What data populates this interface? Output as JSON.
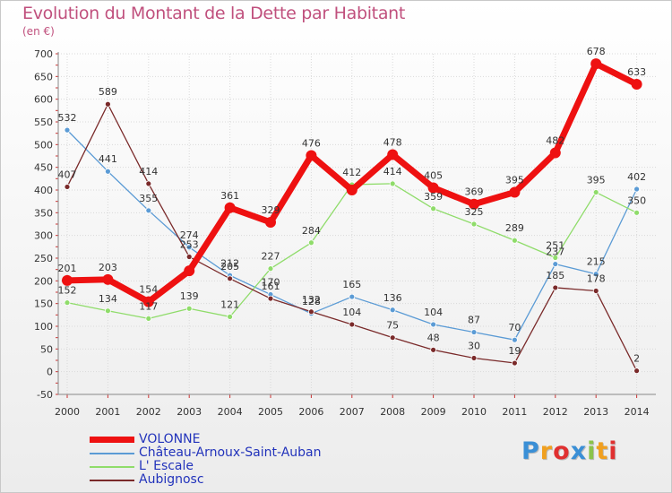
{
  "title": "Evolution du Montant de la Dette par Habitant",
  "unit": "(en €)",
  "logo": {
    "text": "Proxiti",
    "colors": [
      "#3a8fd6",
      "#f0a020",
      "#e03030",
      "#3a8fd6",
      "#8bc34a",
      "#f0a020",
      "#e03030"
    ]
  },
  "chart_data": {
    "type": "line",
    "title": "Evolution du Montant de la Dette par Habitant",
    "ylabel": "(en €)",
    "xlabel": "",
    "x": [
      "2000",
      "2001",
      "2002",
      "2003",
      "2004",
      "2005",
      "2006",
      "2007",
      "2008",
      "2009",
      "2010",
      "2011",
      "2012",
      "2013",
      "2014"
    ],
    "ylim": [
      -50,
      700
    ],
    "yticks": [
      "-50",
      "0",
      "50",
      "100",
      "150",
      "200",
      "250",
      "300",
      "350",
      "400",
      "450",
      "500",
      "550",
      "600",
      "650",
      "700"
    ],
    "grid": true,
    "legend_position": "bottom-left",
    "series": [
      {
        "name": "VOLONNE",
        "color": "#ee1111",
        "values": [
          201,
          203,
          154,
          222,
          361,
          329,
          476,
          400,
          478,
          405,
          369,
          395,
          482,
          678,
          633
        ],
        "labels": [
          "201",
          "203",
          "154",
          "",
          "361",
          "329",
          "476",
          "",
          "478",
          "405",
          "369",
          "395",
          "482",
          "678",
          "633"
        ]
      },
      {
        "name": "Château-Arnoux-Saint-Auban",
        "color": "#5b9bd5",
        "values": [
          532,
          441,
          355,
          274,
          212,
          170,
          128,
          165,
          136,
          104,
          87,
          70,
          237,
          215,
          402
        ],
        "labels": [
          "532",
          "441",
          "355",
          "274",
          "212",
          "170",
          "128",
          "165",
          "136",
          "104",
          "87",
          "70",
          "237",
          "215",
          "402"
        ]
      },
      {
        "name": "L' Escale",
        "color": "#8fdc6a",
        "values": [
          152,
          134,
          117,
          139,
          121,
          227,
          284,
          412,
          414,
          359,
          325,
          289,
          251,
          395,
          350
        ],
        "labels": [
          "152",
          "134",
          "117",
          "139",
          "121",
          "227",
          "284",
          "412",
          "414",
          "359",
          "325",
          "289",
          "251",
          "395",
          "350"
        ]
      },
      {
        "name": "Aubignosc",
        "color": "#7a2a2a",
        "values": [
          407,
          589,
          414,
          253,
          205,
          161,
          132,
          104,
          75,
          48,
          30,
          19,
          185,
          178,
          2
        ],
        "labels": [
          "407",
          "589",
          "414",
          "253",
          "205",
          "161",
          "132",
          "104",
          "75",
          "48",
          "30",
          "19",
          "185",
          "178",
          "2"
        ]
      }
    ]
  }
}
